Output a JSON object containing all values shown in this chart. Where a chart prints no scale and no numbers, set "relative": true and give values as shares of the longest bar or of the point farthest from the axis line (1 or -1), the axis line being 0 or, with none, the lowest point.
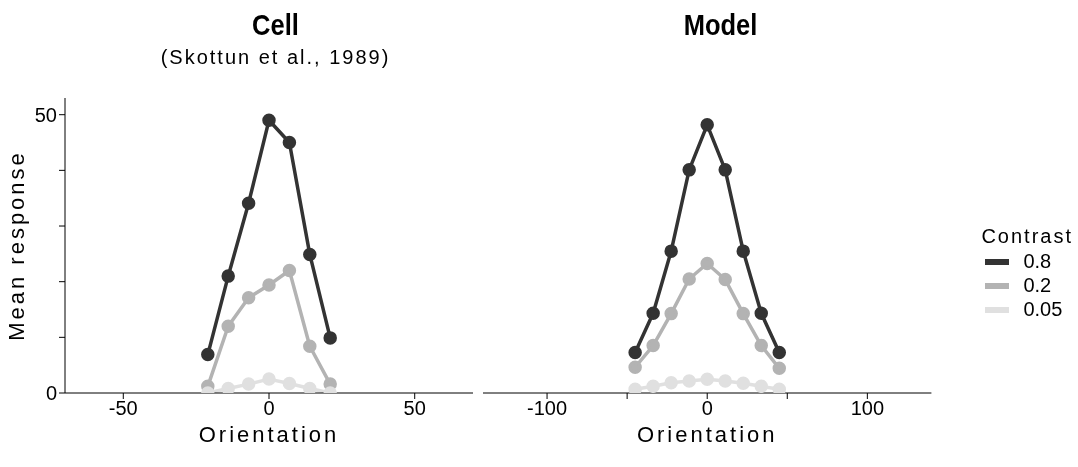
{
  "chart_data": [
    {
      "type": "line",
      "title": "Cell",
      "subtitle": "(Skottun et al., 1989)",
      "xlabel": "Orientation",
      "ylabel": "Mean response",
      "x": [
        -21,
        -14,
        -7,
        0,
        7,
        14,
        21
      ],
      "series": [
        {
          "color": "#333333",
          "values": [
            6.9,
            21.0,
            34.1,
            49.0,
            45.0,
            24.9,
            9.9
          ]
        },
        {
          "color": "#b3b3b3",
          "values": [
            1.2,
            12.0,
            17.1,
            19.4,
            22.0,
            8.4,
            1.6
          ]
        },
        {
          "color": "#e0e0e0",
          "values": [
            0,
            0.8,
            1.6,
            2.5,
            1.7,
            0.8,
            0
          ]
        }
      ],
      "xlim": [
        -70,
        70
      ],
      "xticks": [
        -50,
        0,
        50
      ],
      "ylim": [
        0,
        53
      ],
      "yticks": [
        0,
        {
          "value": 10,
          "label": null
        },
        {
          "value": 20,
          "label": null
        },
        {
          "value": 30,
          "label": null
        },
        {
          "value": 40,
          "label": null
        },
        50
      ],
      "marker": "circle",
      "line_style": "solid",
      "legend": false
    },
    {
      "type": "line",
      "title": "Model",
      "xlabel": "Orientation",
      "legend_title": "Contrast",
      "relative": true,
      "x": [
        -45,
        -33.75,
        -22.5,
        -11.25,
        0,
        11.25,
        22.5,
        33.75,
        45
      ],
      "series": [
        {
          "name": "0.8",
          "color": "#333333",
          "values": [
            0.151,
            0.297,
            0.529,
            0.832,
            1,
            0.832,
            0.529,
            0.297,
            0.151
          ]
        },
        {
          "name": "0.2",
          "color": "#b3b3b3",
          "values": [
            0.096,
            0.177,
            0.296,
            0.425,
            0.483,
            0.423,
            0.296,
            0.177,
            0.092
          ]
        },
        {
          "name": "0.05",
          "color": "#e0e0e0",
          "values": [
            0.014,
            0.025,
            0.038,
            0.045,
            0.051,
            0.045,
            0.036,
            0.025,
            0.014
          ]
        }
      ],
      "xlim": [
        -140,
        140
      ],
      "xticks": [
        -100,
        {
          "value": -50,
          "label": null
        },
        0,
        {
          "value": 50,
          "label": null
        },
        100
      ],
      "tick_labels": "x",
      "marker": "circle",
      "line_style": "solid",
      "legend": "right"
    }
  ]
}
